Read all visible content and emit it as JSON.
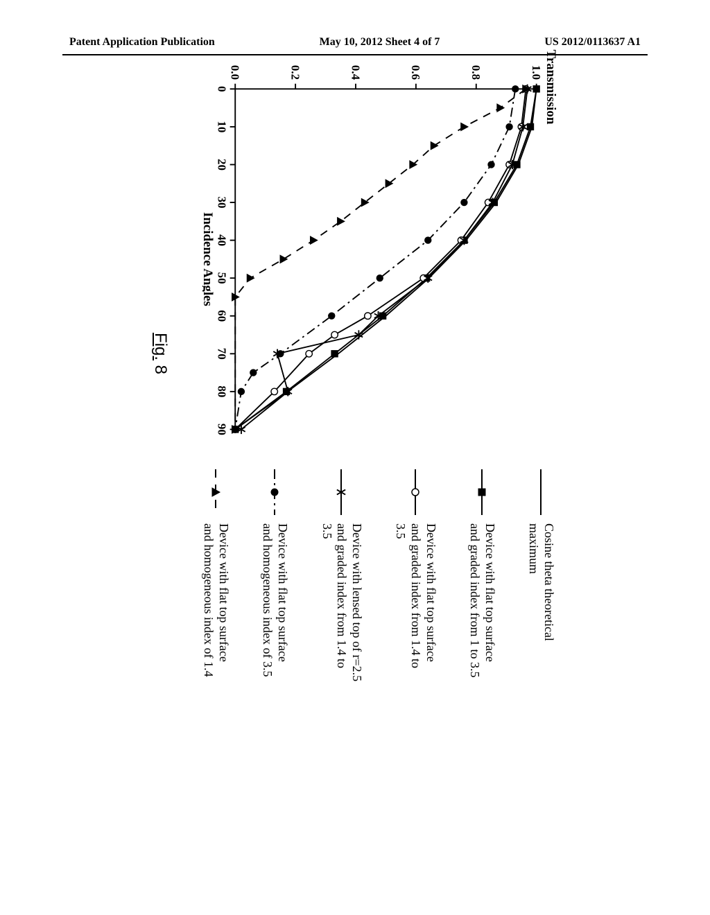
{
  "header": {
    "left": "Patent Application Publication",
    "center": "May 10, 2012  Sheet 4 of 7",
    "right": "US 2012/0113637 A1"
  },
  "figure": {
    "caption_prefix": "Fig.",
    "caption_number": "8",
    "y_axis_title": "Transmission",
    "x_axis_title": "Incidence Angles",
    "x_ticks": [
      0,
      10,
      20,
      30,
      40,
      50,
      60,
      70,
      80,
      90
    ],
    "y_ticks": [
      "0.0",
      "0.2",
      "0.4",
      "0.6",
      "0.8",
      "1.0"
    ],
    "x_range": [
      0,
      90
    ],
    "y_range": [
      0,
      1.0
    ],
    "background_color": "#ffffff",
    "axis_color": "#000000",
    "series": [
      {
        "name": "cosine-theta",
        "label": "Cosine theta theoretical maximum",
        "line_style": "solid",
        "line_width": 2,
        "marker": "none",
        "data": [
          [
            0,
            1.0
          ],
          [
            10,
            0.985
          ],
          [
            20,
            0.94
          ],
          [
            30,
            0.866
          ],
          [
            40,
            0.766
          ],
          [
            50,
            0.643
          ],
          [
            60,
            0.5
          ],
          [
            70,
            0.342
          ],
          [
            80,
            0.174
          ],
          [
            90,
            0.0
          ]
        ]
      },
      {
        "name": "flat-graded-1-3.5",
        "label": "Device with flat top surface and graded index from 1 to 3.5",
        "line_style": "solid",
        "line_width": 2,
        "marker": "square-filled",
        "data": [
          [
            0,
            1.0
          ],
          [
            10,
            0.98
          ],
          [
            20,
            0.935
          ],
          [
            30,
            0.86
          ],
          [
            40,
            0.76
          ],
          [
            50,
            0.635
          ],
          [
            60,
            0.49
          ],
          [
            70,
            0.33
          ],
          [
            80,
            0.17
          ],
          [
            90,
            0.0
          ]
        ]
      },
      {
        "name": "flat-graded-1.4-3.5",
        "label": "Device with flat top surface and graded index from 1.4 to 3.5",
        "line_style": "solid",
        "line_width": 2,
        "marker": "circle-open",
        "data": [
          [
            0,
            0.965
          ],
          [
            10,
            0.95
          ],
          [
            20,
            0.91
          ],
          [
            30,
            0.84
          ],
          [
            40,
            0.75
          ],
          [
            50,
            0.625
          ],
          [
            60,
            0.44
          ],
          [
            65,
            0.33
          ],
          [
            70,
            0.245
          ],
          [
            80,
            0.13
          ],
          [
            90,
            0.0
          ]
        ]
      },
      {
        "name": "lensed-graded",
        "label": "Device with lensed top of r=2.5 and graded index from 1.4 to 3.5",
        "line_style": "solid",
        "line_width": 2,
        "marker": "star",
        "data": [
          [
            0,
            0.97
          ],
          [
            10,
            0.955
          ],
          [
            20,
            0.92
          ],
          [
            30,
            0.855
          ],
          [
            40,
            0.76
          ],
          [
            50,
            0.64
          ],
          [
            60,
            0.475
          ],
          [
            65,
            0.41
          ],
          [
            70,
            0.14
          ],
          [
            80,
            0.175
          ],
          [
            90,
            0.02
          ]
        ]
      },
      {
        "name": "flat-homogeneous-3.5",
        "label": "Device with flat top surface and homogeneous index of 3.5",
        "line_style": "dash-dot",
        "line_width": 2,
        "marker": "circle-filled",
        "data": [
          [
            0,
            0.93
          ],
          [
            10,
            0.91
          ],
          [
            20,
            0.85
          ],
          [
            30,
            0.76
          ],
          [
            40,
            0.64
          ],
          [
            50,
            0.48
          ],
          [
            60,
            0.32
          ],
          [
            70,
            0.15
          ],
          [
            75,
            0.06
          ],
          [
            80,
            0.02
          ],
          [
            90,
            0.0
          ]
        ]
      },
      {
        "name": "flat-homogeneous-1.4",
        "label": "Device with flat top surface and homogeneous index of 1.4",
        "line_style": "dashed",
        "line_width": 2,
        "marker": "triangle-filled",
        "data": [
          [
            0,
            0.965
          ],
          [
            5,
            0.88
          ],
          [
            10,
            0.76
          ],
          [
            15,
            0.66
          ],
          [
            20,
            0.59
          ],
          [
            25,
            0.51
          ],
          [
            30,
            0.43
          ],
          [
            35,
            0.35
          ],
          [
            40,
            0.26
          ],
          [
            45,
            0.16
          ],
          [
            50,
            0.05
          ],
          [
            55,
            0.0
          ],
          [
            90,
            0.0
          ]
        ]
      }
    ]
  }
}
